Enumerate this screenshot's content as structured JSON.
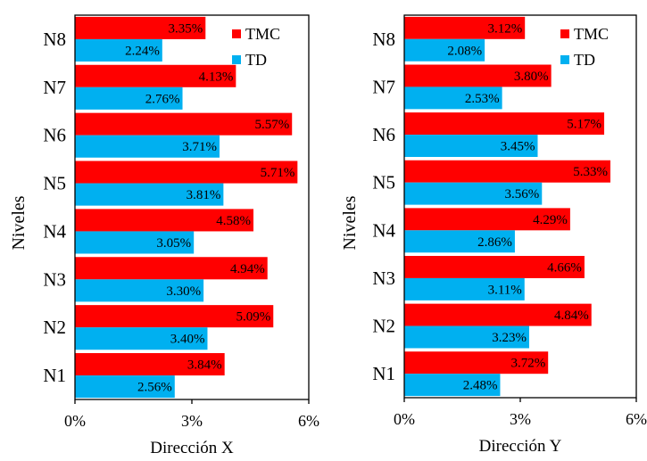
{
  "chart_data": [
    {
      "type": "bar",
      "orientation": "horizontal",
      "categories": [
        "N1",
        "N2",
        "N3",
        "N4",
        "N5",
        "N6",
        "N7",
        "N8"
      ],
      "series": [
        {
          "name": "TMC",
          "color": "#ff0000",
          "values": [
            3.84,
            5.09,
            4.94,
            4.58,
            5.71,
            5.57,
            4.13,
            3.35
          ],
          "labels": [
            "3.84%",
            "5.09%",
            "4.94%",
            "4.58%",
            "5.71%",
            "5.57%",
            "4.13%",
            "3.35%"
          ]
        },
        {
          "name": "TD",
          "color": "#00b0f0",
          "values": [
            2.56,
            3.4,
            3.3,
            3.05,
            3.81,
            3.71,
            2.76,
            2.24
          ],
          "labels": [
            "2.56%",
            "3.40%",
            "3.30%",
            "3.05%",
            "3.81%",
            "3.71%",
            "2.76%",
            "2.24%"
          ]
        }
      ],
      "xlabel": "Dirección X",
      "ylabel": "Niveles",
      "xlim": [
        0,
        6
      ],
      "xticks": [
        "0%",
        "3%",
        "6%"
      ],
      "legend": "top-right",
      "grid": false
    },
    {
      "type": "bar",
      "orientation": "horizontal",
      "categories": [
        "N1",
        "N2",
        "N3",
        "N4",
        "N5",
        "N6",
        "N7",
        "N8"
      ],
      "series": [
        {
          "name": "TMC",
          "color": "#ff0000",
          "values": [
            3.72,
            4.84,
            4.66,
            4.29,
            5.33,
            5.17,
            3.8,
            3.12
          ],
          "labels": [
            "3.72%",
            "4.84%",
            "4.66%",
            "4.29%",
            "5.33%",
            "5.17%",
            "3.80%",
            "3.12%"
          ]
        },
        {
          "name": "TD",
          "color": "#00b0f0",
          "values": [
            2.48,
            3.23,
            3.11,
            2.86,
            3.56,
            3.45,
            2.53,
            2.08
          ],
          "labels": [
            "2.48%",
            "3.23%",
            "3.11%",
            "2.86%",
            "3.56%",
            "3.45%",
            "2.53%",
            "2.08%"
          ]
        }
      ],
      "xlabel": "Dirección Y",
      "ylabel": "Niveles",
      "xlim": [
        0,
        6
      ],
      "xticks": [
        "0%",
        "3%",
        "6%"
      ],
      "legend": "top-right",
      "grid": false
    }
  ]
}
